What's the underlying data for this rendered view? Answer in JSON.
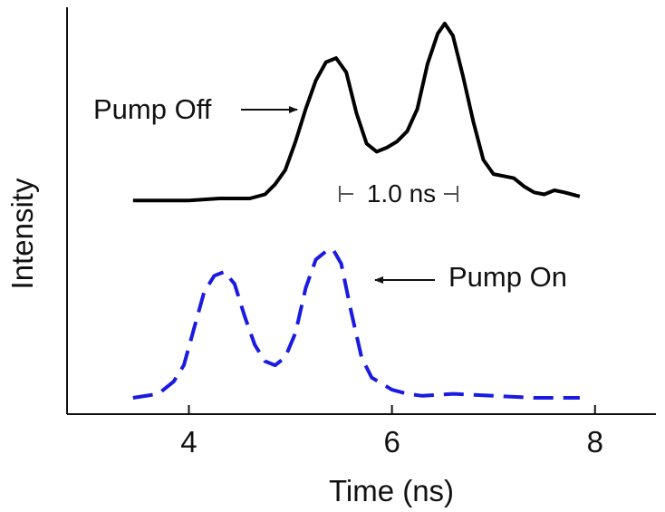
{
  "chart_data": {
    "type": "line",
    "xlabel": "Time (ns)",
    "ylabel": "Intensity",
    "xlim": [
      2.8,
      8.6
    ],
    "ylim": [
      0,
      1
    ],
    "grid": false,
    "y_ticks_shown": false,
    "x_ticks": [
      4,
      6,
      8
    ],
    "x_tick_labels": [
      "4",
      "6",
      "8"
    ],
    "series": [
      {
        "name": "Pump Off",
        "color": "#000000",
        "style": "solid",
        "x": [
          3.45,
          3.7,
          4.0,
          4.3,
          4.6,
          4.75,
          4.85,
          4.95,
          5.05,
          5.15,
          5.25,
          5.35,
          5.45,
          5.55,
          5.65,
          5.75,
          5.85,
          5.95,
          6.05,
          6.15,
          6.25,
          6.35,
          6.45,
          6.52,
          6.6,
          6.7,
          6.8,
          6.9,
          7.0,
          7.1,
          7.2,
          7.3,
          7.4,
          7.5,
          7.6,
          7.7,
          7.85
        ],
        "y": [
          0.525,
          0.525,
          0.525,
          0.53,
          0.53,
          0.54,
          0.565,
          0.6,
          0.67,
          0.75,
          0.82,
          0.865,
          0.875,
          0.84,
          0.74,
          0.665,
          0.645,
          0.655,
          0.67,
          0.695,
          0.75,
          0.86,
          0.935,
          0.96,
          0.93,
          0.83,
          0.72,
          0.625,
          0.59,
          0.585,
          0.58,
          0.56,
          0.545,
          0.54,
          0.55,
          0.545,
          0.535
        ]
      },
      {
        "name": "Pump On",
        "color": "#1a1ae0",
        "style": "dashed",
        "x": [
          3.45,
          3.7,
          3.85,
          3.95,
          4.05,
          4.15,
          4.25,
          4.35,
          4.45,
          4.55,
          4.65,
          4.75,
          4.85,
          4.95,
          5.05,
          5.15,
          5.25,
          5.35,
          5.42,
          5.5,
          5.6,
          5.7,
          5.8,
          5.9,
          6.0,
          6.15,
          6.3,
          6.6,
          7.0,
          7.4,
          7.85
        ],
        "y": [
          0.04,
          0.05,
          0.08,
          0.12,
          0.21,
          0.3,
          0.34,
          0.35,
          0.32,
          0.24,
          0.17,
          0.13,
          0.12,
          0.14,
          0.2,
          0.31,
          0.38,
          0.4,
          0.405,
          0.37,
          0.25,
          0.14,
          0.09,
          0.075,
          0.06,
          0.05,
          0.045,
          0.05,
          0.045,
          0.04,
          0.04
        ]
      }
    ],
    "annotations": [
      {
        "text": "Pump Off",
        "points_to": "Pump Off"
      },
      {
        "text": "Pump On",
        "points_to": "Pump On"
      },
      {
        "text": "1.0 ns",
        "spans_x": [
          5.42,
          6.52
        ]
      }
    ]
  }
}
